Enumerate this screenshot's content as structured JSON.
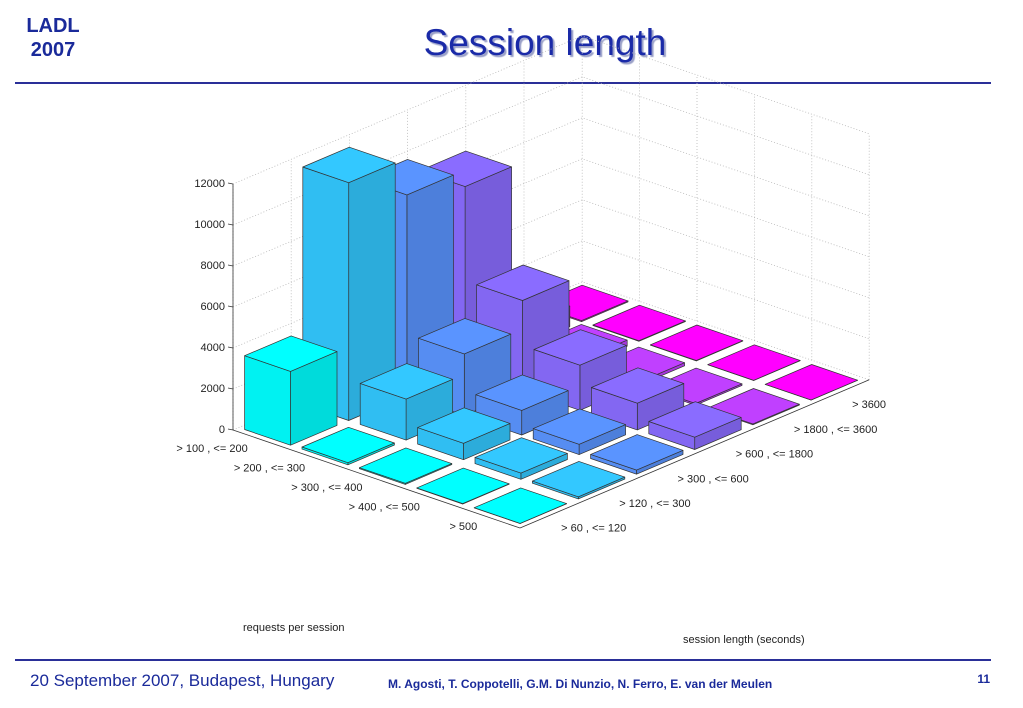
{
  "header": {
    "logo_line1": "LADL",
    "logo_line2": "2007",
    "title": "Session length"
  },
  "footer": {
    "place_date": "20 September 2007, Budapest, Hungary",
    "authors": "M. Agosti, T. Coppotelli, G.M. Di Nunzio, N. Ferro, E. van der Meulen",
    "page_number": "11"
  },
  "colors": {
    "accent": "#1a2a9a",
    "bar_series": [
      "#00ffff",
      "#33c8ff",
      "#5a94ff",
      "#8a6cff",
      "#c040ff",
      "#ff00ff"
    ]
  },
  "chart_data": {
    "type": "bar3d",
    "title": "",
    "xlabel": "requests per session",
    "ylabel": "session length (seconds)",
    "zlim": [
      0,
      12000
    ],
    "z_ticks": [
      0,
      2000,
      4000,
      6000,
      8000,
      10000,
      12000
    ],
    "grid": true,
    "row_categories": [
      "> 100 , <= 200",
      "> 200 , <= 300",
      "> 300 , <= 400",
      "> 400 , <= 500",
      "> 500"
    ],
    "column_categories": [
      "> 60 , <= 120",
      "> 120 , <= 300",
      "> 300 , <= 600",
      "> 600 , <= 1800",
      "> 1800 , <= 3600",
      "> 3600"
    ],
    "values": [
      [
        3600,
        11600,
        9800,
        9000,
        1000,
        50
      ],
      [
        100,
        2000,
        3000,
        4400,
        300,
        30
      ],
      [
        50,
        800,
        1200,
        2200,
        150,
        20
      ],
      [
        20,
        300,
        500,
        1300,
        80,
        10
      ],
      [
        10,
        100,
        200,
        600,
        40,
        5
      ]
    ]
  }
}
